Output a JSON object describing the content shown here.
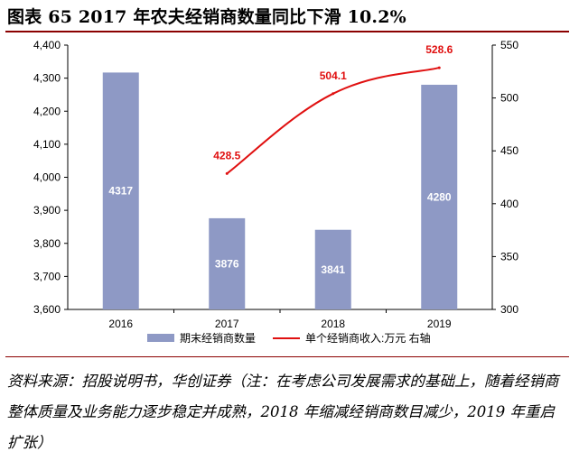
{
  "figure": {
    "title": "图表 65   2017 年农夫经销商数量同比下滑 10.2%",
    "source_note": "资料来源：招股说明书，华创证券（注：在考虑公司发展需求的基础上，随着经销商整体质量及业务能力逐步稳定并成熟，2018 年缩减经销商数目减少，2019 年重启扩张）"
  },
  "chart_data": {
    "type": "bar",
    "categories": [
      "2016",
      "2017",
      "2018",
      "2019"
    ],
    "series": [
      {
        "name": "期末经销商数量",
        "type": "bar",
        "axis": "left",
        "values": [
          4317,
          3876,
          3841,
          4280
        ],
        "labels": [
          "4317",
          "3876",
          "3841",
          "4280"
        ],
        "color": "#8e99c5"
      },
      {
        "name": "单个经销商收入:万元 右轴",
        "type": "line",
        "axis": "right",
        "x": [
          "2017",
          "2018",
          "2019"
        ],
        "values": [
          428.5,
          504.1,
          528.6
        ],
        "labels": [
          "428.5",
          "504.1",
          "528.6"
        ],
        "color": "#e01010"
      }
    ],
    "y_left": {
      "ylim": [
        3600,
        4400
      ],
      "ticks": [
        3600,
        3700,
        3800,
        3900,
        4000,
        4100,
        4200,
        4300,
        4400
      ],
      "tick_labels": [
        "3,600",
        "3,700",
        "3,800",
        "3,900",
        "4,000",
        "4,100",
        "4,200",
        "4,300",
        "4,400"
      ]
    },
    "y_right": {
      "ylim": [
        300,
        550
      ],
      "ticks": [
        300,
        350,
        400,
        450,
        500,
        550
      ],
      "tick_labels": [
        "300",
        "350",
        "400",
        "450",
        "500",
        "550"
      ]
    },
    "grid": false,
    "legend": "bottom"
  }
}
